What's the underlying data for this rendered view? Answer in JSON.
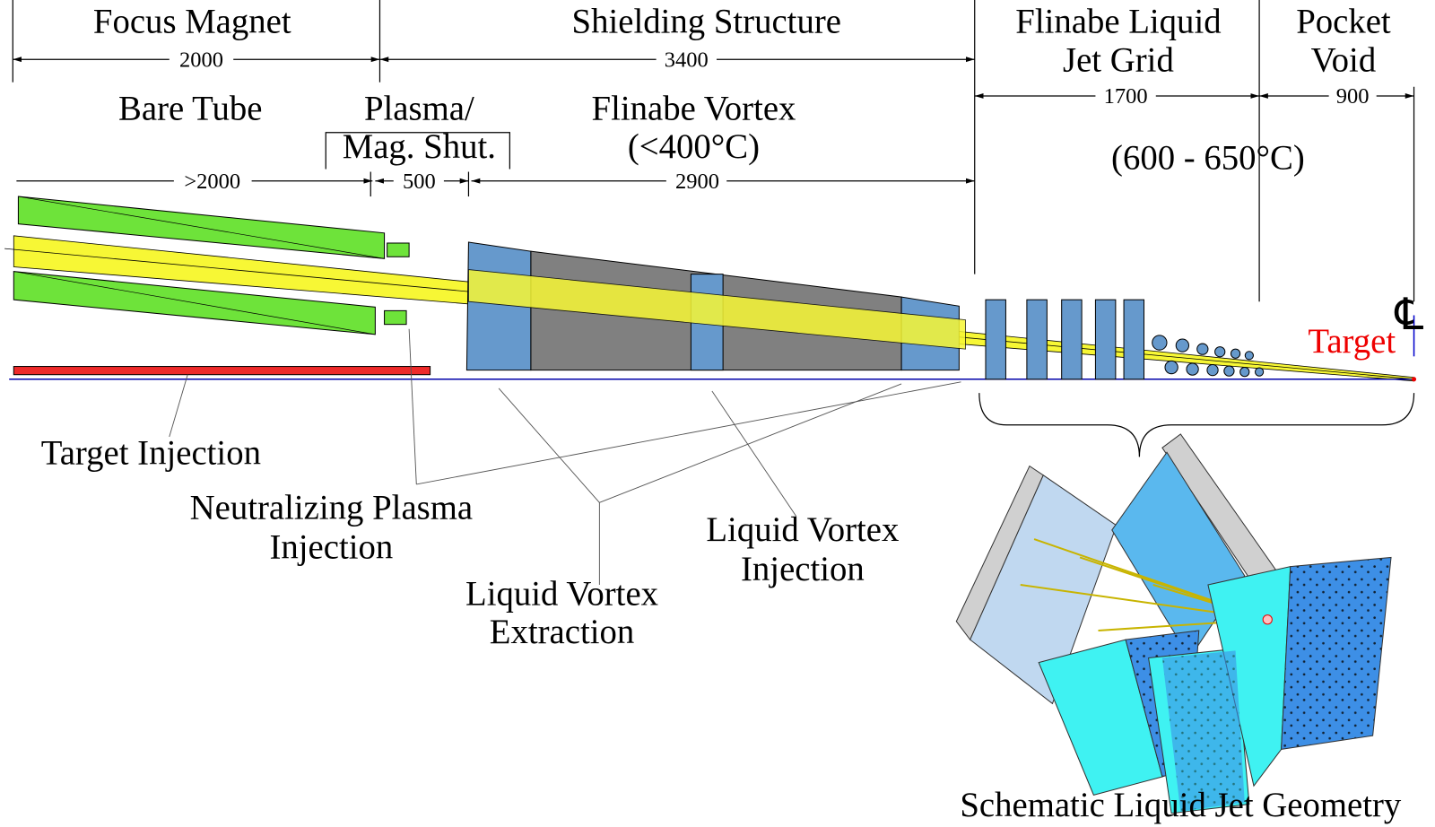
{
  "header": {
    "sections": [
      {
        "label": [
          "Focus Magnet"
        ],
        "dimension": "2000"
      },
      {
        "label": [
          "Shielding Structure"
        ],
        "dimension": "3400"
      },
      {
        "label": [
          "Flinabe Liquid",
          "Jet Grid"
        ],
        "dimension": "1700"
      },
      {
        "label": [
          "Pocket",
          "Void"
        ],
        "dimension": "900"
      }
    ],
    "subsections": [
      {
        "label": [
          "Bare Tube"
        ],
        "dimension": ">2000"
      },
      {
        "label": [
          "Plasma/",
          "Mag. Shut."
        ],
        "dimension": "500"
      },
      {
        "label": [
          "Flinabe Vortex",
          "(<400°C)"
        ],
        "dimension": "2900"
      }
    ],
    "temperature": "(600 - 650°C)"
  },
  "markers": {
    "centerline": "℄",
    "target": "Target"
  },
  "callouts": [
    {
      "label": [
        "Target Injection"
      ]
    },
    {
      "label": [
        "Neutralizing Plasma",
        "Injection"
      ]
    },
    {
      "label": [
        "Liquid Vortex",
        "Extraction"
      ]
    },
    {
      "label": [
        "Liquid Vortex",
        "Injection"
      ]
    }
  ],
  "caption": "Schematic Liquid Jet Geometry"
}
